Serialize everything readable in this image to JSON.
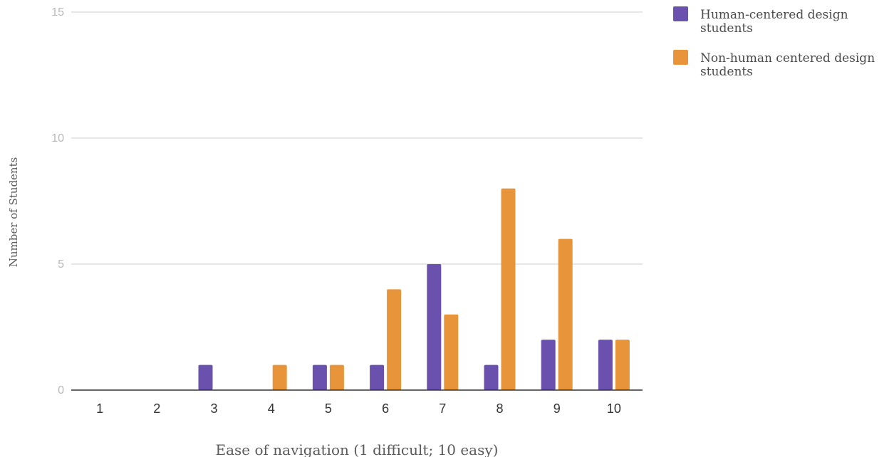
{
  "chart_data": {
    "type": "bar",
    "categories": [
      "1",
      "2",
      "3",
      "4",
      "5",
      "6",
      "7",
      "8",
      "9",
      "10"
    ],
    "series": [
      {
        "name": "Human-centered design students",
        "legend_lines": [
          "Human-centered design",
          "students"
        ],
        "color": "#6a51ad",
        "values": [
          0,
          0,
          1,
          0,
          1,
          1,
          5,
          1,
          2,
          2
        ]
      },
      {
        "name": "Non-human centered design students",
        "legend_lines": [
          "Non-human centered design",
          "students"
        ],
        "color": "#e8943a",
        "values": [
          0,
          0,
          0,
          1,
          1,
          4,
          3,
          8,
          6,
          2
        ]
      }
    ],
    "xlabel": "Ease of navigation (1 difficult; 10 easy)",
    "ylabel": "Number of Students",
    "ylim": [
      0,
      15
    ],
    "yticks": [
      0,
      5,
      10,
      15
    ],
    "grid": true,
    "legend_position": "top-right"
  }
}
